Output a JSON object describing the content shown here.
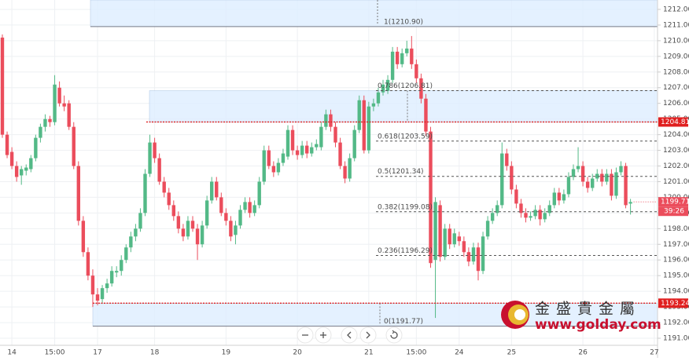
{
  "chart_data": {
    "type": "candlestick",
    "up_color": "#53b987",
    "down_color": "#eb4d5c",
    "ohlc": [
      [
        1210.2,
        1210.4,
        1203.8,
        1204.0
      ],
      [
        1204.0,
        1204.2,
        1202.5,
        1202.7
      ],
      [
        1202.9,
        1203.2,
        1201.8,
        1202.0
      ],
      [
        1202.0,
        1202.3,
        1201.0,
        1201.3
      ],
      [
        1201.4,
        1202.0,
        1200.8,
        1201.8
      ],
      [
        1201.7,
        1202.1,
        1201.4,
        1201.9
      ],
      [
        1201.8,
        1202.7,
        1201.6,
        1202.5
      ],
      [
        1202.5,
        1204.0,
        1202.3,
        1203.8
      ],
      [
        1203.8,
        1204.7,
        1203.5,
        1204.5
      ],
      [
        1204.5,
        1205.3,
        1204.2,
        1205.0
      ],
      [
        1205.0,
        1205.2,
        1204.5,
        1204.8
      ],
      [
        1204.8,
        1207.8,
        1204.6,
        1207.2
      ],
      [
        1207.0,
        1207.4,
        1205.8,
        1206.0
      ],
      [
        1206.0,
        1206.5,
        1205.5,
        1205.8
      ],
      [
        1206.0,
        1206.2,
        1204.3,
        1204.5
      ],
      [
        1204.5,
        1204.8,
        1201.8,
        1202.0
      ],
      [
        1202.0,
        1202.3,
        1198.2,
        1198.5
      ],
      [
        1198.5,
        1198.8,
        1196.2,
        1196.5
      ],
      [
        1196.5,
        1196.8,
        1194.7,
        1195.0
      ],
      [
        1195.0,
        1195.4,
        1193.0,
        1193.8
      ],
      [
        1193.8,
        1194.2,
        1193.1,
        1193.4
      ],
      [
        1193.5,
        1194.4,
        1193.2,
        1194.2
      ],
      [
        1194.2,
        1194.8,
        1193.9,
        1194.5
      ],
      [
        1194.5,
        1195.6,
        1194.3,
        1195.3
      ],
      [
        1195.2,
        1195.6,
        1194.9,
        1195.3
      ],
      [
        1195.3,
        1196.3,
        1195.0,
        1196.0
      ],
      [
        1196.0,
        1197.0,
        1195.8,
        1196.8
      ],
      [
        1196.8,
        1197.8,
        1196.5,
        1197.5
      ],
      [
        1197.5,
        1198.3,
        1197.2,
        1198.0
      ],
      [
        1198.0,
        1199.3,
        1197.8,
        1199.0
      ],
      [
        1199.0,
        1201.8,
        1198.8,
        1201.5
      ],
      [
        1201.5,
        1204.0,
        1201.3,
        1203.5
      ],
      [
        1203.5,
        1203.8,
        1202.2,
        1202.5
      ],
      [
        1202.5,
        1202.8,
        1200.8,
        1201.0
      ],
      [
        1201.0,
        1201.3,
        1200.0,
        1200.3
      ],
      [
        1200.3,
        1200.6,
        1199.2,
        1199.5
      ],
      [
        1199.5,
        1199.8,
        1198.5,
        1198.8
      ],
      [
        1198.8,
        1199.1,
        1197.7,
        1198.0
      ],
      [
        1198.0,
        1198.3,
        1197.2,
        1197.5
      ],
      [
        1197.5,
        1198.8,
        1197.3,
        1198.5
      ],
      [
        1198.5,
        1198.8,
        1197.8,
        1198.0
      ],
      [
        1198.0,
        1198.3,
        1196.0,
        1197.0
      ],
      [
        1197.0,
        1198.5,
        1196.8,
        1198.2
      ],
      [
        1198.2,
        1200.1,
        1198.0,
        1199.8
      ],
      [
        1199.8,
        1201.3,
        1199.6,
        1201.0
      ],
      [
        1201.0,
        1201.3,
        1199.8,
        1200.0
      ],
      [
        1200.0,
        1200.3,
        1198.8,
        1199.0
      ],
      [
        1199.0,
        1199.3,
        1198.2,
        1198.5
      ],
      [
        1198.5,
        1198.8,
        1197.2,
        1197.5
      ],
      [
        1197.6,
        1198.5,
        1197.0,
        1198.2
      ],
      [
        1198.2,
        1199.5,
        1198.0,
        1199.2
      ],
      [
        1199.2,
        1200.0,
        1199.0,
        1199.7
      ],
      [
        1199.7,
        1200.0,
        1198.7,
        1199.0
      ],
      [
        1199.0,
        1199.8,
        1198.8,
        1199.5
      ],
      [
        1199.5,
        1201.3,
        1199.3,
        1201.0
      ],
      [
        1201.0,
        1203.3,
        1200.8,
        1203.0
      ],
      [
        1203.0,
        1203.3,
        1201.8,
        1202.0
      ],
      [
        1202.0,
        1202.3,
        1201.3,
        1201.6
      ],
      [
        1201.6,
        1202.5,
        1201.4,
        1202.2
      ],
      [
        1202.2,
        1203.1,
        1202.0,
        1202.8
      ],
      [
        1202.6,
        1204.6,
        1202.4,
        1204.3
      ],
      [
        1204.3,
        1204.6,
        1202.7,
        1203.0
      ],
      [
        1203.0,
        1203.3,
        1202.4,
        1202.7
      ],
      [
        1202.7,
        1203.6,
        1202.5,
        1203.3
      ],
      [
        1203.3,
        1203.6,
        1202.5,
        1202.8
      ],
      [
        1202.8,
        1203.5,
        1202.6,
        1203.2
      ],
      [
        1203.2,
        1203.7,
        1203.0,
        1203.4
      ],
      [
        1203.2,
        1204.8,
        1203.0,
        1204.5
      ],
      [
        1204.5,
        1205.6,
        1204.3,
        1205.3
      ],
      [
        1205.3,
        1205.6,
        1204.2,
        1204.5
      ],
      [
        1204.5,
        1204.8,
        1203.2,
        1203.5
      ],
      [
        1203.5,
        1203.8,
        1201.8,
        1202.0
      ],
      [
        1202.0,
        1202.3,
        1200.9,
        1201.2
      ],
      [
        1201.2,
        1202.8,
        1201.0,
        1202.5
      ],
      [
        1202.5,
        1204.6,
        1202.3,
        1204.3
      ],
      [
        1204.3,
        1206.5,
        1204.1,
        1206.2
      ],
      [
        1206.2,
        1206.5,
        1202.8,
        1203.0
      ],
      [
        1203.0,
        1206.1,
        1202.8,
        1205.8
      ],
      [
        1205.8,
        1206.3,
        1205.5,
        1206.0
      ],
      [
        1206.0,
        1207.0,
        1205.8,
        1206.7
      ],
      [
        1206.7,
        1207.5,
        1206.5,
        1207.2
      ],
      [
        1206.8,
        1207.8,
        1206.6,
        1207.5
      ],
      [
        1207.5,
        1209.6,
        1207.3,
        1209.3
      ],
      [
        1209.3,
        1209.6,
        1208.2,
        1208.5
      ],
      [
        1208.5,
        1209.5,
        1208.3,
        1209.2
      ],
      [
        1209.2,
        1210.0,
        1209.0,
        1209.5
      ],
      [
        1209.5,
        1210.3,
        1208.2,
        1208.5
      ],
      [
        1208.5,
        1208.8,
        1207.3,
        1207.6
      ],
      [
        1207.6,
        1207.9,
        1206.0,
        1206.3
      ],
      [
        1206.3,
        1206.6,
        1203.9,
        1204.2
      ],
      [
        1204.2,
        1204.5,
        1195.5,
        1195.8
      ],
      [
        1196.0,
        1200.0,
        1192.3,
        1199.7
      ],
      [
        1199.5,
        1199.8,
        1195.9,
        1196.2
      ],
      [
        1196.2,
        1198.3,
        1196.0,
        1198.0
      ],
      [
        1198.0,
        1198.3,
        1196.7,
        1197.0
      ],
      [
        1197.0,
        1198.0,
        1196.8,
        1197.7
      ],
      [
        1197.5,
        1197.8,
        1196.9,
        1197.2
      ],
      [
        1197.2,
        1197.5,
        1196.2,
        1196.5
      ],
      [
        1196.5,
        1196.8,
        1195.6,
        1195.9
      ],
      [
        1195.9,
        1197.1,
        1195.7,
        1196.8
      ],
      [
        1196.8,
        1197.1,
        1194.7,
        1195.3
      ],
      [
        1195.3,
        1197.8,
        1195.1,
        1197.5
      ],
      [
        1197.5,
        1198.8,
        1197.3,
        1198.5
      ],
      [
        1198.5,
        1199.3,
        1198.3,
        1199.0
      ],
      [
        1199.0,
        1199.8,
        1198.8,
        1199.5
      ],
      [
        1199.5,
        1203.5,
        1199.3,
        1202.8
      ],
      [
        1202.8,
        1203.1,
        1201.7,
        1202.0
      ],
      [
        1202.0,
        1202.3,
        1200.2,
        1200.5
      ],
      [
        1200.5,
        1200.8,
        1199.3,
        1199.6
      ],
      [
        1199.6,
        1199.9,
        1198.7,
        1199.0
      ],
      [
        1199.0,
        1199.3,
        1198.4,
        1198.7
      ],
      [
        1198.7,
        1199.1,
        1198.5,
        1198.8
      ],
      [
        1198.8,
        1199.5,
        1198.6,
        1199.2
      ],
      [
        1199.2,
        1199.5,
        1198.2,
        1198.6
      ],
      [
        1198.6,
        1199.3,
        1198.4,
        1199.0
      ],
      [
        1199.0,
        1199.8,
        1198.8,
        1199.5
      ],
      [
        1199.5,
        1200.6,
        1199.3,
        1200.3
      ],
      [
        1200.3,
        1200.6,
        1199.5,
        1199.8
      ],
      [
        1199.8,
        1200.5,
        1199.6,
        1200.2
      ],
      [
        1200.2,
        1201.6,
        1200.0,
        1201.3
      ],
      [
        1201.3,
        1202.1,
        1201.1,
        1201.8
      ],
      [
        1201.8,
        1203.2,
        1201.6,
        1202.0
      ],
      [
        1202.0,
        1202.3,
        1200.7,
        1201.0
      ],
      [
        1201.0,
        1201.3,
        1200.3,
        1200.6
      ],
      [
        1200.6,
        1201.5,
        1200.4,
        1201.2
      ],
      [
        1201.2,
        1201.8,
        1201.0,
        1201.5
      ],
      [
        1201.5,
        1201.8,
        1200.7,
        1201.0
      ],
      [
        1201.0,
        1201.8,
        1200.8,
        1201.5
      ],
      [
        1201.5,
        1201.8,
        1199.8,
        1200.1
      ],
      [
        1200.1,
        1201.9,
        1199.9,
        1201.6
      ],
      [
        1201.6,
        1202.3,
        1201.4,
        1202.0
      ],
      [
        1202.0,
        1202.2,
        1199.3,
        1199.5
      ],
      [
        1199.6,
        1199.9,
        1198.9,
        1199.7
      ]
    ],
    "xticks": [
      {
        "value": 2,
        "label": "14"
      },
      {
        "value": 11,
        "label": "15:00"
      },
      {
        "value": 20,
        "label": "17"
      },
      {
        "value": 32,
        "label": "18"
      },
      {
        "value": 47,
        "label": "19"
      },
      {
        "value": 62,
        "label": "20"
      },
      {
        "value": 77,
        "label": "21"
      },
      {
        "value": 87,
        "label": "15:00"
      },
      {
        "value": 96,
        "label": "24"
      },
      {
        "value": 107,
        "label": "25"
      },
      {
        "value": 122,
        "label": "26"
      },
      {
        "value": 137,
        "label": "27"
      }
    ],
    "ylim": [
      1190.55,
      1212.6
    ],
    "yticks": [
      {
        "value": 1191,
        "label": "1191.00"
      },
      {
        "value": 1192,
        "label": "1192.00"
      },
      {
        "value": 1193,
        "label": "1193.00"
      },
      {
        "value": 1194,
        "label": "1194.00"
      },
      {
        "value": 1195,
        "label": "1195.00"
      },
      {
        "value": 1196,
        "label": "1196.00"
      },
      {
        "value": 1197,
        "label": "1197.00"
      },
      {
        "value": 1198,
        "label": "1198.00"
      },
      {
        "value": 1199,
        "label": "1199.00"
      },
      {
        "value": 1200,
        "label": "1200.00"
      },
      {
        "value": 1201,
        "label": "1201.00"
      },
      {
        "value": 1202,
        "label": "1202.00"
      },
      {
        "value": 1203,
        "label": "1203.00"
      },
      {
        "value": 1204,
        "label": "1204.00"
      },
      {
        "value": 1205,
        "label": "1205.00"
      },
      {
        "value": 1206,
        "label": "1206.00"
      },
      {
        "value": 1207,
        "label": "1207.00"
      },
      {
        "value": 1208,
        "label": "1208.00"
      },
      {
        "value": 1209,
        "label": "1209.00"
      },
      {
        "value": 1210,
        "label": "1210.00"
      },
      {
        "value": 1211,
        "label": "1211.00"
      },
      {
        "value": 1212,
        "label": "1212.00"
      }
    ],
    "grid": true,
    "fib_levels": [
      {
        "value": 1210.9,
        "label": "1(1210.90)"
      },
      {
        "value": 1206.81,
        "label": "0.786(1206.81)"
      },
      {
        "value": 1203.59,
        "label": "0.618(1203.59)"
      },
      {
        "value": 1201.34,
        "label": "0.5(1201.34)"
      },
      {
        "value": 1199.08,
        "label": "0.382(1199.08)"
      },
      {
        "value": 1196.29,
        "label": "0.236(1196.29)"
      },
      {
        "value": 1191.77,
        "label": "0(1191.77)"
      }
    ],
    "price_lines": [
      1204.81,
      1193.24
    ],
    "last_price": 1199.71,
    "countdown": "39:26",
    "watermark": {
      "name": "金盛貴金屬",
      "url": "www.golday.com"
    }
  }
}
